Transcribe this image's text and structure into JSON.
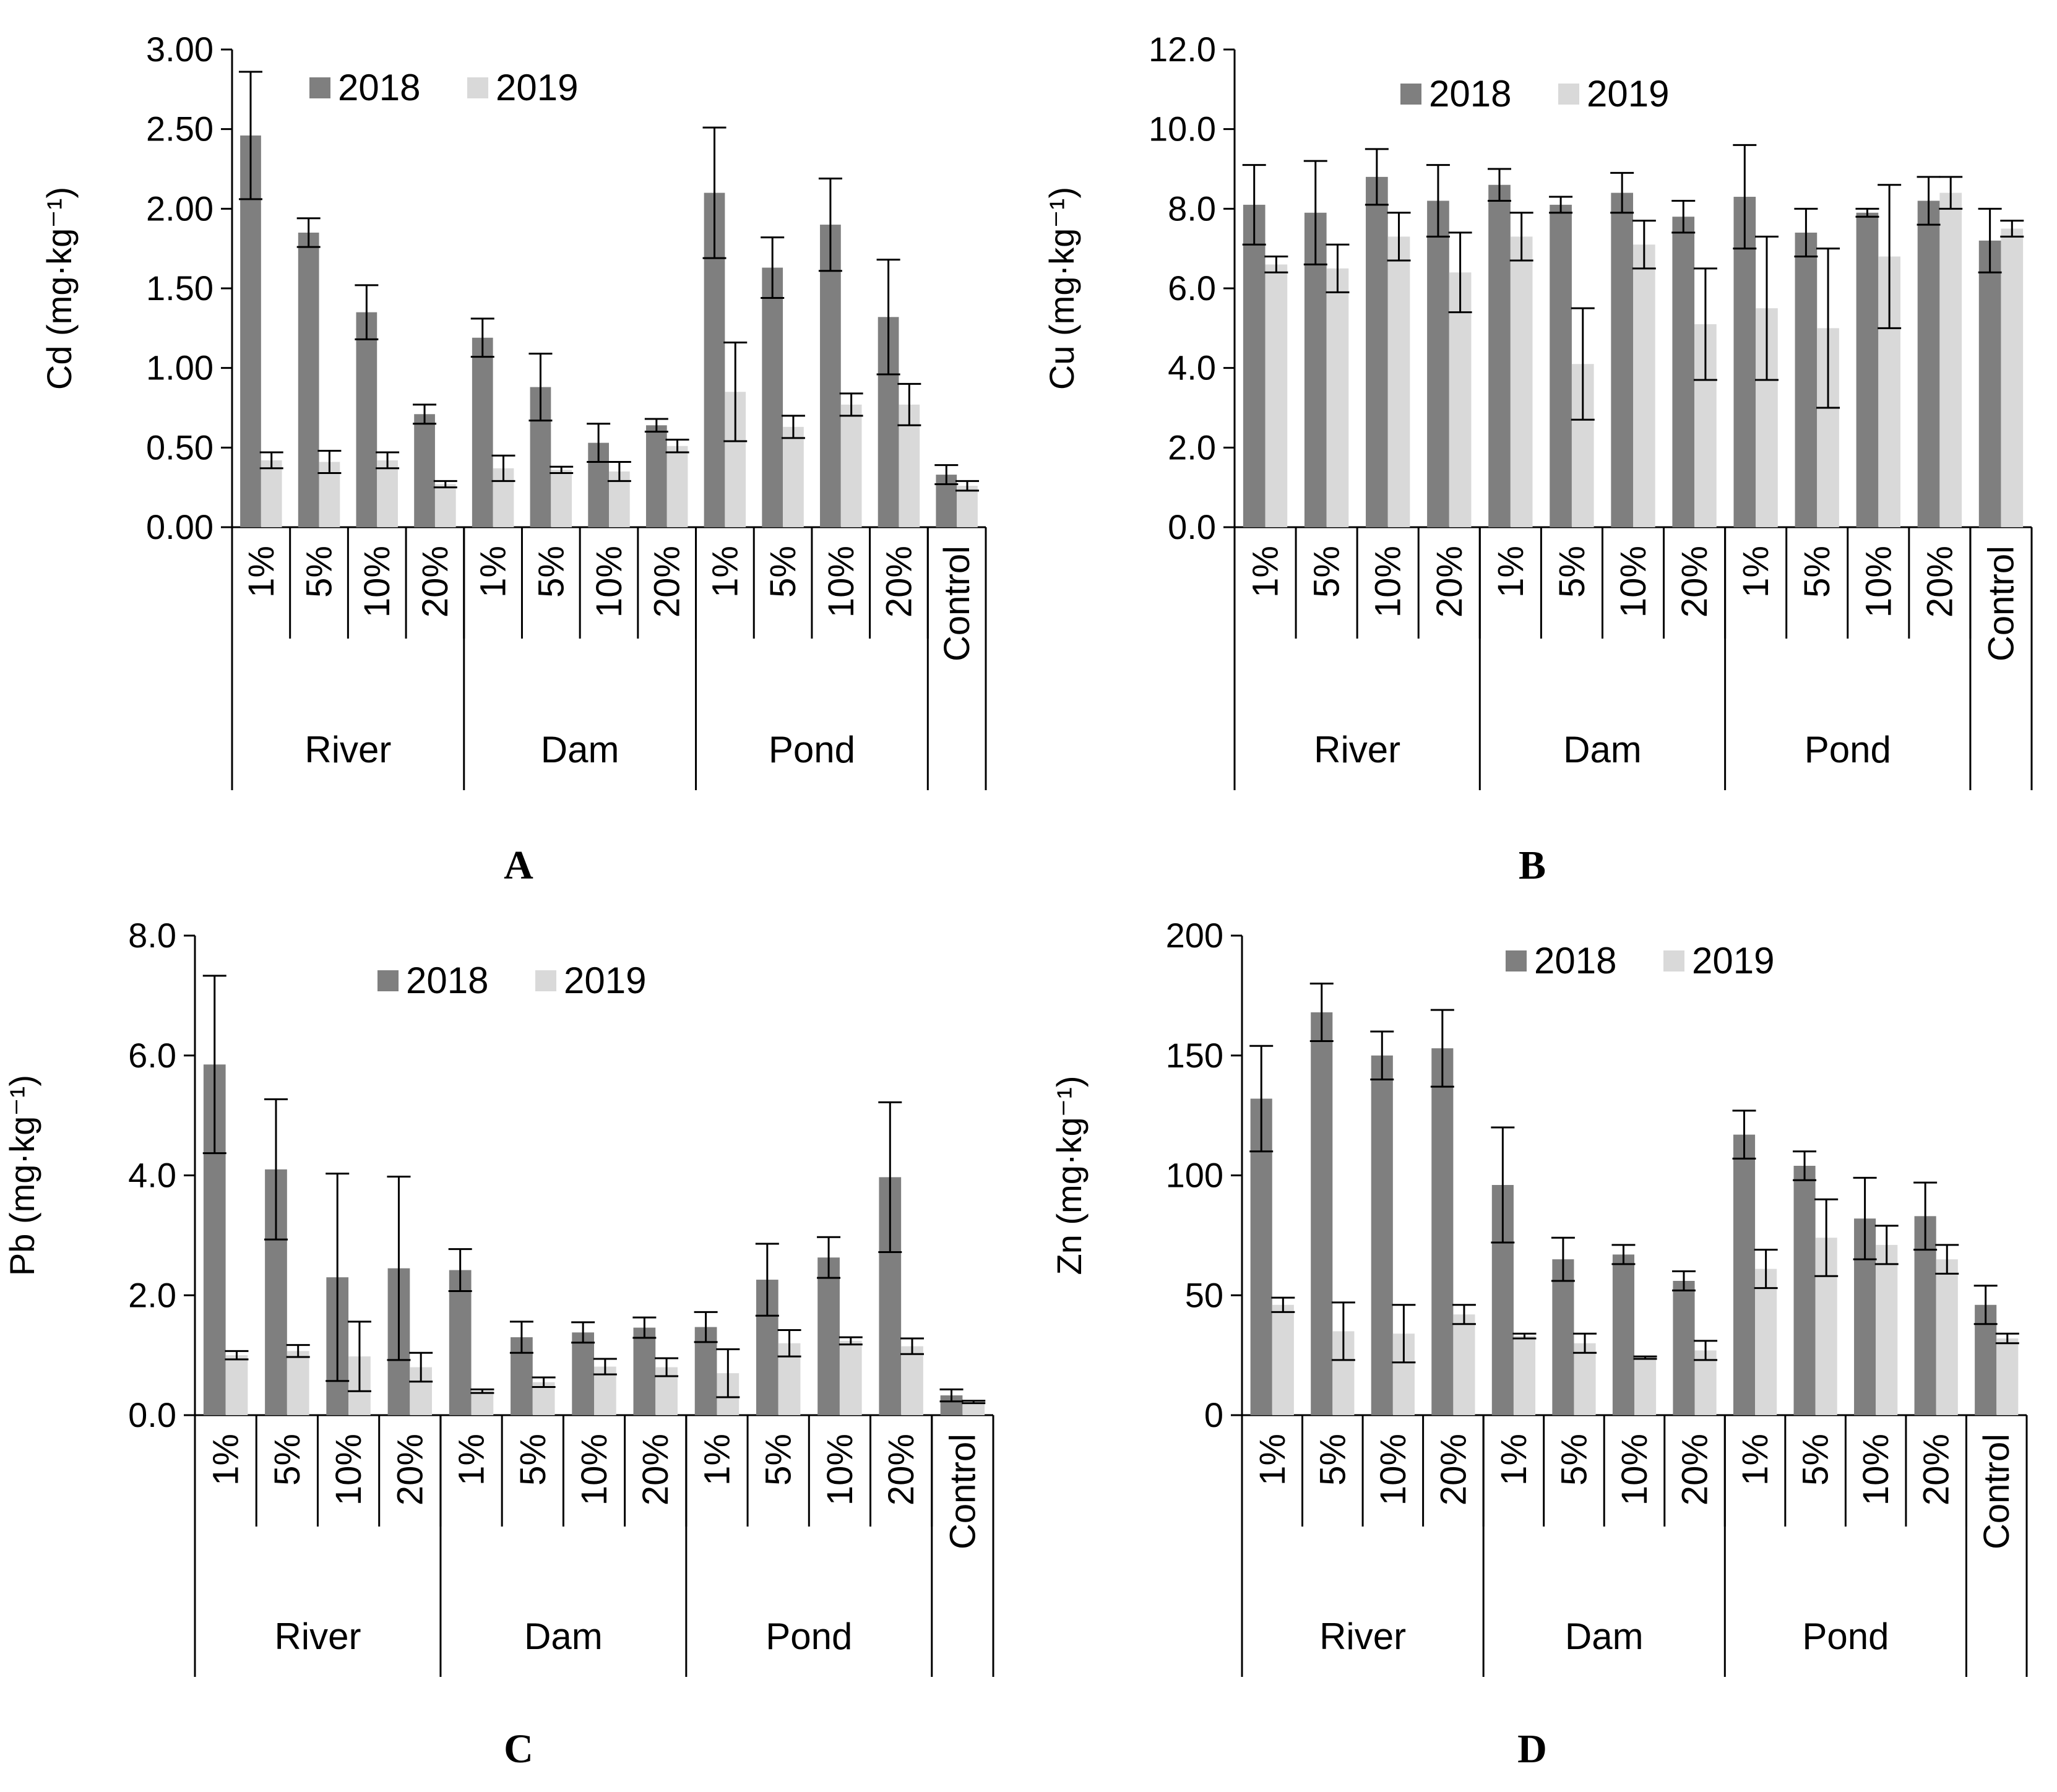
{
  "figure": {
    "colors": {
      "series_2018": "#7f7f7f",
      "series_2019": "#d9d9d9",
      "axis": "#000000"
    }
  },
  "chart_data": [
    {
      "panel": "A",
      "type": "bar",
      "ylabel": "Cd (mg·kg⁻¹)",
      "ylim": [
        0,
        3
      ],
      "yticks": [
        "0.00",
        "0.50",
        "1.00",
        "1.50",
        "2.00",
        "2.50",
        "3.00"
      ],
      "legend": [
        "2018",
        "2019"
      ],
      "legend_position": "top-left",
      "categories": [
        "1%",
        "5%",
        "10%",
        "20%",
        "1%",
        "5%",
        "10%",
        "20%",
        "1%",
        "5%",
        "10%",
        "20%",
        "Control"
      ],
      "groups": [
        {
          "label": "River",
          "span": 4
        },
        {
          "label": "Dam",
          "span": 4
        },
        {
          "label": "Pond",
          "span": 4
        },
        {
          "label": "",
          "span": 1
        }
      ],
      "series": [
        {
          "name": "2018",
          "values": [
            2.46,
            1.85,
            1.35,
            0.71,
            1.19,
            0.88,
            0.53,
            0.64,
            2.1,
            1.63,
            1.9,
            1.32,
            0.33
          ],
          "errors": [
            0.4,
            0.09,
            0.17,
            0.06,
            0.12,
            0.21,
            0.12,
            0.04,
            0.41,
            0.19,
            0.29,
            0.36,
            0.06
          ]
        },
        {
          "name": "2019",
          "values": [
            0.42,
            0.41,
            0.42,
            0.27,
            0.37,
            0.36,
            0.35,
            0.51,
            0.85,
            0.63,
            0.77,
            0.77,
            0.26
          ]
        },
        {
          "name": "2019 error",
          "errors": [
            0.05,
            0.07,
            0.05,
            0.02,
            0.08,
            0.02,
            0.06,
            0.04,
            0.31,
            0.07,
            0.07,
            0.13,
            0.03
          ]
        }
      ]
    },
    {
      "panel": "B",
      "type": "bar",
      "ylabel": "Cu (mg·kg⁻¹)",
      "ylim": [
        0,
        12
      ],
      "yticks": [
        "0.0",
        "2.0",
        "4.0",
        "6.0",
        "8.0",
        "10.0",
        "12.0"
      ],
      "legend": [
        "2018",
        "2019"
      ],
      "legend_position": "top-center",
      "categories": [
        "1%",
        "5%",
        "10%",
        "20%",
        "1%",
        "5%",
        "10%",
        "20%",
        "1%",
        "5%",
        "10%",
        "20%",
        "Control"
      ],
      "groups": [
        {
          "label": "River",
          "span": 4
        },
        {
          "label": "Dam",
          "span": 4
        },
        {
          "label": "Pond",
          "span": 4
        },
        {
          "label": "",
          "span": 1
        }
      ],
      "series": [
        {
          "name": "2018",
          "values": [
            8.1,
            7.9,
            8.8,
            8.2,
            8.6,
            8.1,
            8.4,
            7.8,
            8.3,
            7.4,
            7.9,
            8.2,
            7.2
          ],
          "errors": [
            1.0,
            1.3,
            0.7,
            0.9,
            0.4,
            0.2,
            0.5,
            0.4,
            1.3,
            0.6,
            0.1,
            0.6,
            0.8
          ]
        },
        {
          "name": "2019",
          "values": [
            6.6,
            6.5,
            7.3,
            6.4,
            7.3,
            4.1,
            7.1,
            5.1,
            5.5,
            5.0,
            6.8,
            8.4,
            7.5
          ]
        },
        {
          "name": "2019 error",
          "errors": [
            0.2,
            0.6,
            0.6,
            1.0,
            0.6,
            1.4,
            0.6,
            1.4,
            1.8,
            2.0,
            1.8,
            0.4,
            0.2
          ]
        }
      ]
    },
    {
      "panel": "C",
      "type": "bar",
      "ylabel": "Pb (mg·kg⁻¹)",
      "ylim": [
        0,
        8
      ],
      "yticks": [
        "0.0",
        "2.0",
        "4.0",
        "6.0",
        "8.0"
      ],
      "legend": [
        "2018",
        "2019"
      ],
      "legend_position": "top-center",
      "categories": [
        "1%",
        "5%",
        "10%",
        "20%",
        "1%",
        "5%",
        "10%",
        "20%",
        "1%",
        "5%",
        "10%",
        "20%",
        "Control"
      ],
      "groups": [
        {
          "label": "River",
          "span": 4
        },
        {
          "label": "Dam",
          "span": 4
        },
        {
          "label": "Pond",
          "span": 4
        },
        {
          "label": "",
          "span": 1
        }
      ],
      "series": [
        {
          "name": "2018",
          "values": [
            5.85,
            4.1,
            2.3,
            2.45,
            2.42,
            1.3,
            1.38,
            1.46,
            1.47,
            2.26,
            2.63,
            3.97,
            0.33
          ],
          "errors": [
            1.48,
            1.17,
            1.73,
            1.53,
            0.35,
            0.26,
            0.17,
            0.17,
            0.25,
            0.6,
            0.34,
            1.25,
            0.1
          ]
        },
        {
          "name": "2019",
          "values": [
            1.0,
            1.07,
            0.98,
            0.8,
            0.4,
            0.55,
            0.81,
            0.8,
            0.7,
            1.2,
            1.24,
            1.15,
            0.22
          ]
        },
        {
          "name": "2019 error",
          "errors": [
            0.07,
            0.1,
            0.58,
            0.24,
            0.03,
            0.08,
            0.13,
            0.15,
            0.4,
            0.22,
            0.06,
            0.13,
            0.02
          ]
        }
      ]
    },
    {
      "panel": "D",
      "type": "bar",
      "ylabel": "Zn (mg·kg⁻¹)",
      "ylim": [
        0,
        200
      ],
      "yticks": [
        "0",
        "50",
        "100",
        "150",
        "200"
      ],
      "legend": [
        "2018",
        "2019"
      ],
      "legend_position": "top-center",
      "categories": [
        "1%",
        "5%",
        "10%",
        "20%",
        "1%",
        "5%",
        "10%",
        "20%",
        "1%",
        "5%",
        "10%",
        "20%",
        "Control"
      ],
      "groups": [
        {
          "label": "River",
          "span": 4
        },
        {
          "label": "Dam",
          "span": 4
        },
        {
          "label": "Pond",
          "span": 4
        },
        {
          "label": "",
          "span": 1
        }
      ],
      "series": [
        {
          "name": "2018",
          "values": [
            132,
            168,
            150,
            153,
            96,
            65,
            67,
            56,
            117,
            104,
            82,
            83,
            46
          ],
          "errors": [
            22,
            12,
            10,
            16,
            24,
            9,
            4,
            4,
            10,
            6,
            17,
            14,
            8
          ]
        },
        {
          "name": "2019",
          "values": [
            46,
            35,
            34,
            42,
            33,
            30,
            24,
            27,
            61,
            74,
            71,
            65,
            32
          ]
        },
        {
          "name": "2019 error",
          "errors": [
            3,
            12,
            12,
            4,
            1,
            4,
            0.5,
            4,
            8,
            16,
            8,
            6,
            2
          ]
        }
      ]
    }
  ]
}
